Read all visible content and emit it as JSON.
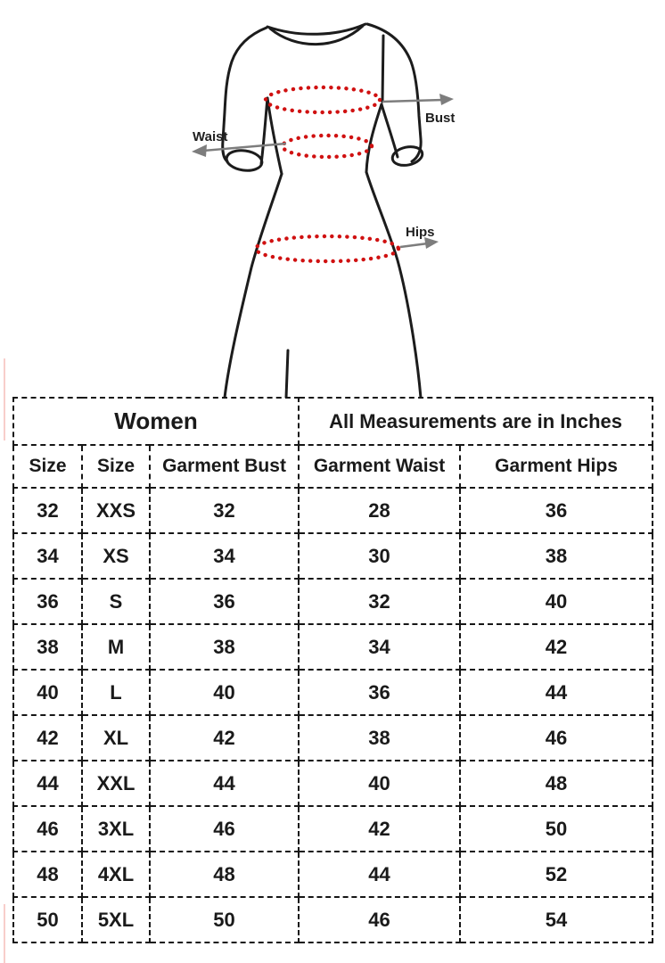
{
  "diagram": {
    "labels": {
      "bust": "Bust",
      "waist": "Waist",
      "hips": "Hips"
    },
    "colors": {
      "outline": "#1c1c1c",
      "measure_dots": "#d01111",
      "arrows": "#7d7d7d",
      "label_text": "#1f1f1f"
    }
  },
  "table": {
    "group_headers": [
      {
        "label": "Women",
        "colspan": 3
      },
      {
        "label": "All Measurements are in Inches",
        "colspan": 2
      }
    ],
    "columns": [
      "Size",
      "Size",
      "Garment Bust",
      "Garment Waist",
      "Garment Hips"
    ],
    "rows": [
      [
        "32",
        "XXS",
        "32",
        "28",
        "36"
      ],
      [
        "34",
        "XS",
        "34",
        "30",
        "38"
      ],
      [
        "36",
        "S",
        "36",
        "32",
        "40"
      ],
      [
        "38",
        "M",
        "38",
        "34",
        "42"
      ],
      [
        "40",
        "L",
        "40",
        "36",
        "44"
      ],
      [
        "42",
        "XL",
        "42",
        "38",
        "46"
      ],
      [
        "44",
        "XXL",
        "44",
        "40",
        "48"
      ],
      [
        "46",
        "3XL",
        "46",
        "42",
        "50"
      ],
      [
        "48",
        "4XL",
        "48",
        "44",
        "52"
      ],
      [
        "50",
        "5XL",
        "50",
        "46",
        "54"
      ]
    ],
    "colors": {
      "women_bg": "#ffff00",
      "header_bg": "#f5dcd0",
      "border": "#161616",
      "cell_bg": "#ffffff",
      "text": "#1a1a1a"
    }
  }
}
